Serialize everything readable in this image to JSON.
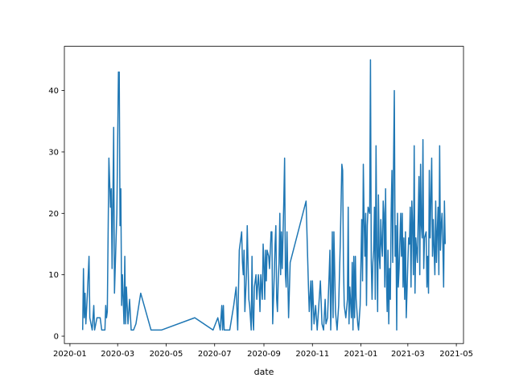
{
  "chart_data": {
    "type": "line",
    "xlabel": "date",
    "color": "#1f77b4",
    "xlim": [
      "2019-12-25",
      "2021-05-10"
    ],
    "xticks": [
      "2020-01",
      "2020-03",
      "2020-05",
      "2020-07",
      "2020-09",
      "2020-11",
      "2021-01",
      "2021-03",
      "2021-05"
    ],
    "ylim": [
      -1.2,
      47.2
    ],
    "yticks": [
      0,
      10,
      20,
      30,
      40
    ],
    "x": [
      "2020-01-17",
      "2020-01-18",
      "2020-01-19",
      "2020-01-20",
      "2020-01-21",
      "2020-01-23",
      "2020-01-25",
      "2020-01-26",
      "2020-01-29",
      "2020-01-31",
      "2020-02-01",
      "2020-02-04",
      "2020-02-08",
      "2020-02-10",
      "2020-02-14",
      "2020-02-15",
      "2020-02-16",
      "2020-02-17",
      "2020-02-19",
      "2020-02-21",
      "2020-02-22",
      "2020-02-23",
      "2020-02-24",
      "2020-02-25",
      "2020-02-26",
      "2020-02-29",
      "2020-03-02",
      "2020-03-03",
      "2020-03-04",
      "2020-03-05",
      "2020-03-06",
      "2020-03-07",
      "2020-03-08",
      "2020-03-09",
      "2020-03-10",
      "2020-03-11",
      "2020-03-12",
      "2020-03-14",
      "2020-03-16",
      "2020-03-18",
      "2020-03-21",
      "2020-03-24",
      "2020-03-30",
      "2020-04-12",
      "2020-04-25",
      "2020-06-06",
      "2020-06-29",
      "2020-07-05",
      "2020-07-08",
      "2020-07-10",
      "2020-07-11",
      "2020-07-12",
      "2020-07-13",
      "2020-07-15",
      "2020-07-18",
      "2020-07-20",
      "2020-07-25",
      "2020-07-28",
      "2020-07-30",
      "2020-08-01",
      "2020-08-02",
      "2020-08-04",
      "2020-08-05",
      "2020-08-06",
      "2020-08-07",
      "2020-08-08",
      "2020-08-10",
      "2020-08-11",
      "2020-08-13",
      "2020-08-14",
      "2020-08-16",
      "2020-08-17",
      "2020-08-18",
      "2020-08-19",
      "2020-08-20",
      "2020-08-22",
      "2020-08-23",
      "2020-08-25",
      "2020-08-26",
      "2020-08-27",
      "2020-08-28",
      "2020-08-30",
      "2020-08-31",
      "2020-09-01",
      "2020-09-02",
      "2020-09-03",
      "2020-09-04",
      "2020-09-05",
      "2020-09-07",
      "2020-09-08",
      "2020-09-10",
      "2020-09-11",
      "2020-09-12",
      "2020-09-14",
      "2020-09-15",
      "2020-09-16",
      "2020-09-17",
      "2020-09-18",
      "2020-09-19",
      "2020-09-20",
      "2020-09-21",
      "2020-09-22",
      "2020-09-23",
      "2020-09-24",
      "2020-09-26",
      "2020-09-27",
      "2020-09-28",
      "2020-09-29",
      "2020-09-30",
      "2020-10-02",
      "2020-10-04",
      "2020-10-24",
      "2020-10-27",
      "2020-10-28",
      "2020-10-30",
      "2020-10-31",
      "2020-11-01",
      "2020-11-03",
      "2020-11-05",
      "2020-11-07",
      "2020-11-09",
      "2020-11-11",
      "2020-11-13",
      "2020-11-15",
      "2020-11-17",
      "2020-11-18",
      "2020-11-20",
      "2020-11-22",
      "2020-11-23",
      "2020-11-24",
      "2020-11-25",
      "2020-11-26",
      "2020-11-27",
      "2020-11-28",
      "2020-11-30",
      "2020-12-02",
      "2020-12-04",
      "2020-12-06",
      "2020-12-08",
      "2020-12-09",
      "2020-12-10",
      "2020-12-11",
      "2020-12-13",
      "2020-12-15",
      "2020-12-16",
      "2020-12-17",
      "2020-12-18",
      "2020-12-20",
      "2020-12-21",
      "2020-12-22",
      "2020-12-23",
      "2020-12-24",
      "2020-12-25",
      "2020-12-26",
      "2020-12-28",
      "2020-12-29",
      "2020-12-31",
      "2021-01-02",
      "2021-01-03",
      "2021-01-04",
      "2021-01-05",
      "2021-01-06",
      "2021-01-07",
      "2021-01-08",
      "2021-01-09",
      "2021-01-10",
      "2021-01-12",
      "2021-01-13",
      "2021-01-14",
      "2021-01-15",
      "2021-01-16",
      "2021-01-17",
      "2021-01-18",
      "2021-01-19",
      "2021-01-20",
      "2021-01-21",
      "2021-01-22",
      "2021-01-23",
      "2021-01-24",
      "2021-01-25",
      "2021-01-26",
      "2021-01-27",
      "2021-01-28",
      "2021-01-29",
      "2021-01-30",
      "2021-01-31",
      "2021-02-01",
      "2021-02-02",
      "2021-02-03",
      "2021-02-04",
      "2021-02-05",
      "2021-02-06",
      "2021-02-07",
      "2021-02-08",
      "2021-02-09",
      "2021-02-10",
      "2021-02-11",
      "2021-02-12",
      "2021-02-13",
      "2021-02-14",
      "2021-02-15",
      "2021-02-16",
      "2021-02-17",
      "2021-02-18",
      "2021-02-20",
      "2021-02-21",
      "2021-02-22",
      "2021-02-23",
      "2021-02-24",
      "2021-02-25",
      "2021-02-26",
      "2021-02-27",
      "2021-03-01",
      "2021-03-02",
      "2021-03-03",
      "2021-03-04",
      "2021-03-05",
      "2021-03-06",
      "2021-03-07",
      "2021-03-08",
      "2021-03-09",
      "2021-03-10",
      "2021-03-11",
      "2021-03-13",
      "2021-03-15",
      "2021-03-16",
      "2021-03-17",
      "2021-03-18",
      "2021-03-19",
      "2021-03-20",
      "2021-03-21",
      "2021-03-22",
      "2021-03-24",
      "2021-03-25",
      "2021-03-26",
      "2021-03-27",
      "2021-03-28",
      "2021-03-29",
      "2021-03-31",
      "2021-04-01",
      "2021-04-02",
      "2021-04-03",
      "2021-04-04",
      "2021-04-05",
      "2021-04-06",
      "2021-04-07",
      "2021-04-08",
      "2021-04-09",
      "2021-04-10",
      "2021-04-11",
      "2021-04-12",
      "2021-04-13",
      "2021-04-14",
      "2021-04-15",
      "2021-04-16",
      "2021-04-17"
    ],
    "values": [
      1,
      11,
      3,
      7,
      2,
      7,
      13,
      3,
      1,
      5,
      1,
      3,
      3,
      1,
      1,
      5,
      3,
      4,
      29,
      21,
      24,
      11,
      22,
      34,
      7,
      20,
      43,
      43,
      18,
      24,
      5,
      10,
      6,
      2,
      13,
      2,
      8,
      2,
      6,
      1,
      1,
      2,
      7,
      1,
      1,
      3,
      1,
      3,
      1,
      5,
      1,
      5,
      1,
      1,
      1,
      1,
      5,
      8,
      1,
      14,
      15,
      17,
      12,
      10,
      14,
      4,
      10,
      18,
      6,
      5,
      1,
      13,
      3,
      1,
      8,
      10,
      6,
      10,
      8,
      4,
      10,
      6,
      15,
      12,
      6,
      14,
      9,
      14,
      13,
      11,
      17,
      17,
      2,
      10,
      15,
      18,
      6,
      4,
      9,
      12,
      20,
      10,
      17,
      11,
      22,
      29,
      10,
      8,
      17,
      3,
      12,
      22,
      8,
      4,
      9,
      1,
      9,
      2,
      5,
      1,
      5,
      9,
      2,
      1,
      6,
      2,
      3,
      10,
      14,
      1,
      7,
      17,
      3,
      17,
      4,
      1,
      5,
      15,
      28,
      27,
      12,
      5,
      3,
      6,
      21,
      2,
      8,
      3,
      12,
      1,
      13,
      3,
      13,
      6,
      2,
      1,
      5,
      19,
      9,
      28,
      19,
      13,
      20,
      5,
      18,
      21,
      20,
      45,
      12,
      6,
      12,
      14,
      21,
      6,
      31,
      14,
      4,
      23,
      13,
      11,
      19,
      15,
      13,
      22,
      20,
      8,
      24,
      10,
      4,
      14,
      2,
      11,
      6,
      20,
      27,
      12,
      28,
      40,
      13,
      18,
      1,
      20,
      8,
      11,
      20,
      13,
      20,
      8,
      16,
      6,
      17,
      3,
      12,
      16,
      15,
      21,
      8,
      22,
      18,
      10,
      31,
      7,
      16,
      12,
      26,
      10,
      28,
      18,
      16,
      32,
      11,
      16,
      17,
      8,
      13,
      7,
      27,
      16,
      29,
      13,
      19,
      14,
      10,
      22,
      12,
      17,
      21,
      10,
      31,
      14,
      18,
      20,
      15,
      8,
      22,
      15
    ]
  }
}
